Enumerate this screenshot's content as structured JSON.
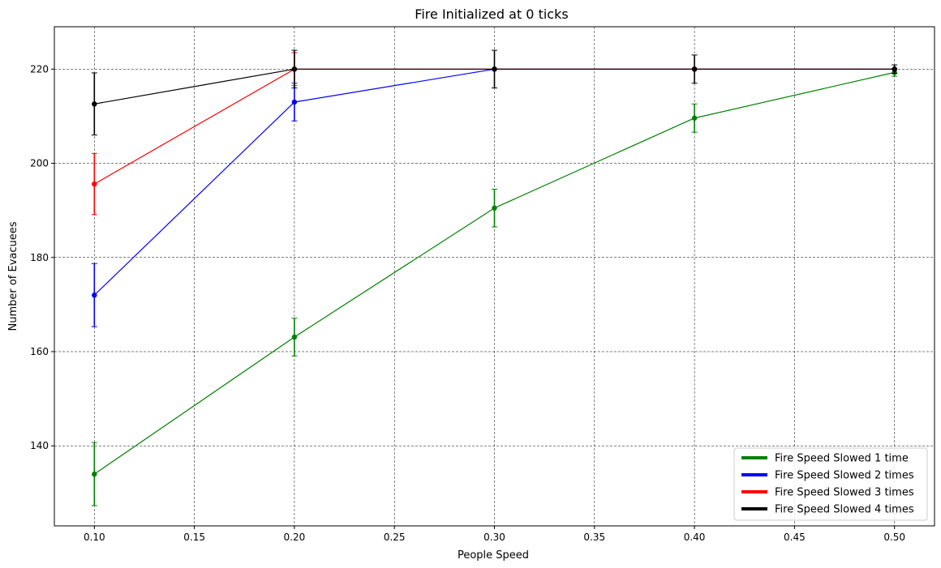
{
  "chart_data": {
    "type": "line",
    "title": "Fire Initialized at 0 ticks",
    "xlabel": "People Speed",
    "ylabel": "Number of Evacuees",
    "xlim": [
      0.08,
      0.52
    ],
    "ylim": [
      123,
      229
    ],
    "xticks": [
      0.1,
      0.15,
      0.2,
      0.25,
      0.3,
      0.35,
      0.4,
      0.45,
      0.5
    ],
    "xtick_labels": [
      "0.10",
      "0.15",
      "0.20",
      "0.25",
      "0.30",
      "0.35",
      "0.40",
      "0.45",
      "0.50"
    ],
    "yticks": [
      140,
      160,
      180,
      200,
      220
    ],
    "ytick_labels": [
      "140",
      "160",
      "180",
      "200",
      "220"
    ],
    "grid": true,
    "legend_position": "bottom-right",
    "series": [
      {
        "name": "Fire Speed Slowed 1 time",
        "color": "#008000",
        "points": [
          {
            "x": 0.1,
            "y": 134.0,
            "err": 6.7
          },
          {
            "x": 0.2,
            "y": 163.1,
            "err": 4.0
          },
          {
            "x": 0.3,
            "y": 190.5,
            "err": 4.0
          },
          {
            "x": 0.4,
            "y": 209.6,
            "err": 3.0
          },
          {
            "x": 0.5,
            "y": 219.3,
            "err": 0.8
          }
        ]
      },
      {
        "name": "Fire Speed Slowed 2 times",
        "color": "#0000ff",
        "points": [
          {
            "x": 0.1,
            "y": 172.0,
            "err": 6.7
          },
          {
            "x": 0.2,
            "y": 213.0,
            "err": 4.0
          },
          {
            "x": 0.3,
            "y": 220.0,
            "err": 0
          },
          {
            "x": 0.4,
            "y": 220.0,
            "err": 0
          },
          {
            "x": 0.5,
            "y": 220.0,
            "err": 0
          }
        ]
      },
      {
        "name": "Fire Speed Slowed 3 times",
        "color": "#ff0000",
        "points": [
          {
            "x": 0.1,
            "y": 195.6,
            "err": 6.5
          },
          {
            "x": 0.2,
            "y": 220.0,
            "err": 3.5
          },
          {
            "x": 0.3,
            "y": 220.0,
            "err": 0
          },
          {
            "x": 0.4,
            "y": 220.0,
            "err": 0
          },
          {
            "x": 0.5,
            "y": 220.0,
            "err": 0
          }
        ]
      },
      {
        "name": "Fire Speed Slowed 4 times",
        "color": "#000000",
        "points": [
          {
            "x": 0.1,
            "y": 212.6,
            "err": 6.6
          },
          {
            "x": 0.2,
            "y": 220.0,
            "err": 4.0
          },
          {
            "x": 0.3,
            "y": 220.0,
            "err": 4.0
          },
          {
            "x": 0.4,
            "y": 220.0,
            "err": 3.0
          },
          {
            "x": 0.5,
            "y": 220.0,
            "err": 0.9
          }
        ]
      }
    ]
  }
}
